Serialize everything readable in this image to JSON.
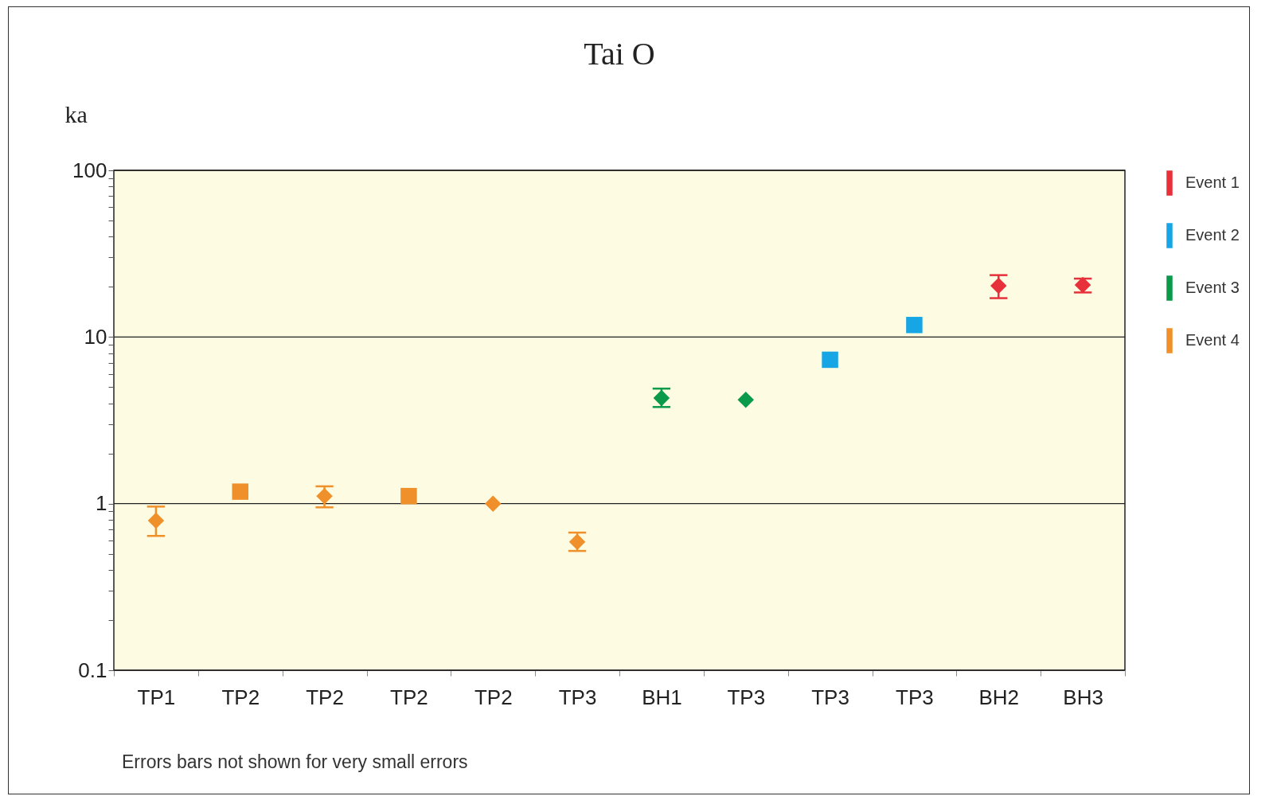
{
  "chart_data": {
    "type": "scatter",
    "title": "Tai O",
    "ylabel": "ka",
    "categories": [
      "TP1",
      "TP2",
      "TP2",
      "TP2",
      "TP2",
      "TP3",
      "BH1",
      "TP3",
      "TP3",
      "TP3",
      "BH2",
      "BH3"
    ],
    "series": [
      {
        "name": "Event 1",
        "color": "#e8303a",
        "marker": "diamond",
        "values": [
          null,
          null,
          null,
          null,
          null,
          null,
          null,
          null,
          null,
          null,
          20.3,
          20.5
        ],
        "errors": [
          null,
          null,
          null,
          null,
          null,
          null,
          null,
          null,
          null,
          null,
          [
            17.1,
            23.5
          ],
          [
            18.5,
            22.4
          ]
        ]
      },
      {
        "name": "Event 2",
        "color": "#16a6e6",
        "marker": "square",
        "values": [
          null,
          null,
          null,
          null,
          null,
          null,
          null,
          null,
          7.3,
          11.8,
          null,
          null
        ]
      },
      {
        "name": "Event 3",
        "color": "#0a9a4a",
        "marker": "diamond",
        "values": [
          null,
          null,
          null,
          null,
          null,
          null,
          4.3,
          4.2,
          null,
          null,
          null,
          null
        ],
        "errors": [
          null,
          null,
          null,
          null,
          null,
          null,
          [
            3.8,
            4.9
          ],
          null,
          null,
          null,
          null,
          null
        ]
      },
      {
        "name": "Event 4",
        "color": "#f0902a",
        "marker": "diamond",
        "values": [
          0.79,
          null,
          1.11,
          null,
          1.0,
          0.59,
          null,
          null,
          null,
          null,
          null,
          null
        ],
        "errors": [
          [
            0.64,
            0.96
          ],
          null,
          [
            0.95,
            1.27
          ],
          null,
          null,
          [
            0.52,
            0.67
          ],
          null,
          null,
          null,
          null,
          null,
          null
        ]
      },
      {
        "color": "#f0902a",
        "marker": "square",
        "values": [
          null,
          1.18,
          null,
          1.11,
          null,
          null,
          null,
          null,
          null,
          null,
          null,
          null
        ]
      }
    ],
    "log": true,
    "ylim": [
      0.1,
      100
    ],
    "yticks": [
      0.1,
      {
        "value": 0.2,
        "label": null
      },
      {
        "value": 0.3,
        "label": null
      },
      {
        "value": 0.4,
        "label": null
      },
      {
        "value": 0.5,
        "label": null
      },
      {
        "value": 0.6,
        "label": null
      },
      {
        "value": 0.7,
        "label": null
      },
      {
        "value": 0.8,
        "label": null
      },
      {
        "value": 0.9,
        "label": null
      },
      1,
      {
        "value": 2,
        "label": null
      },
      {
        "value": 3,
        "label": null
      },
      {
        "value": 4,
        "label": null
      },
      {
        "value": 5,
        "label": null
      },
      {
        "value": 6,
        "label": null
      },
      {
        "value": 7,
        "label": null
      },
      {
        "value": 8,
        "label": null
      },
      {
        "value": 9,
        "label": null
      },
      10,
      {
        "value": 20,
        "label": null
      },
      {
        "value": 30,
        "label": null
      },
      {
        "value": 40,
        "label": null
      },
      {
        "value": 50,
        "label": null
      },
      {
        "value": 60,
        "label": null
      },
      {
        "value": 70,
        "label": null
      },
      {
        "value": 80,
        "label": null
      },
      {
        "value": 90,
        "label": null
      },
      100
    ],
    "grid": "y",
    "legend": "right",
    "annotations": [
      "Errors bars not shown for very small errors"
    ]
  }
}
